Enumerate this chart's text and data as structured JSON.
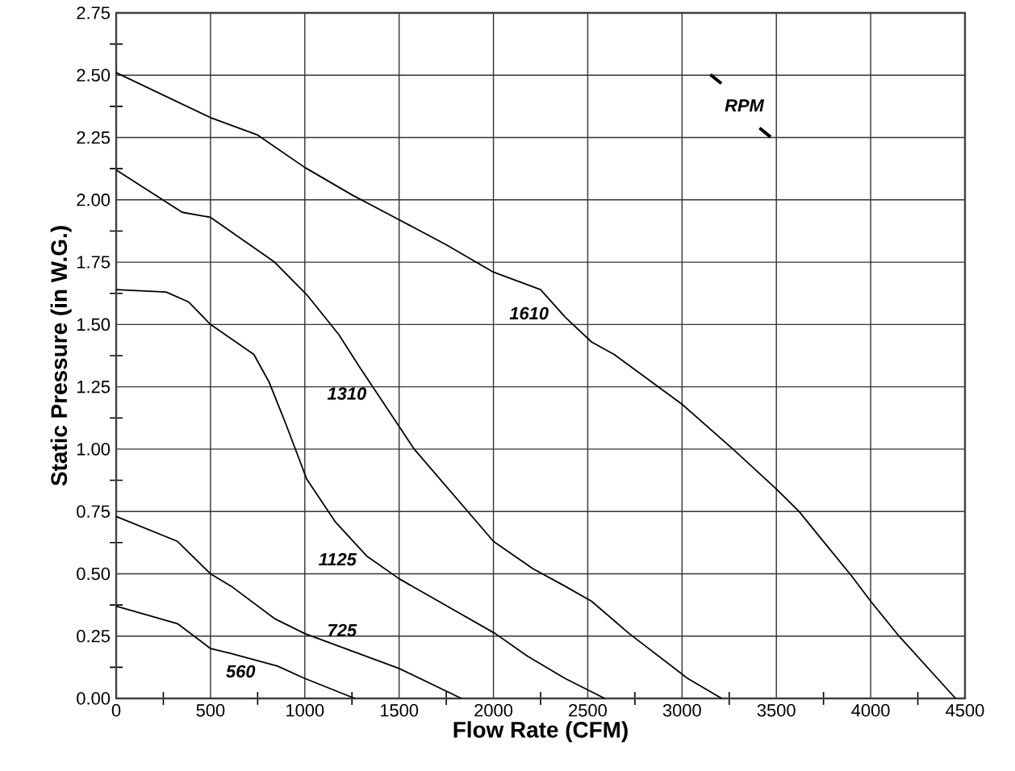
{
  "chart_data": {
    "type": "line",
    "xlabel": "Flow Rate (CFM)",
    "ylabel": "Static Pressure (in W.G.)",
    "xlim": [
      0,
      4500
    ],
    "ylim": [
      0,
      2.75
    ],
    "xticks": [
      0,
      {
        "value": 250,
        "label": null
      },
      500,
      {
        "value": 750,
        "label": null
      },
      1000,
      {
        "value": 1250,
        "label": null
      },
      1500,
      {
        "value": 1750,
        "label": null
      },
      2000,
      {
        "value": 2250,
        "label": null
      },
      2500,
      {
        "value": 2750,
        "label": null
      },
      3000,
      {
        "value": 3250,
        "label": null
      },
      3500,
      {
        "value": 3750,
        "label": null
      },
      4000,
      {
        "value": 4250,
        "label": null
      },
      4500
    ],
    "yticks": [
      {
        "value": 0,
        "label": "0.00"
      },
      {
        "value": 0.125,
        "label": null
      },
      {
        "value": 0.25,
        "label": "0.25"
      },
      {
        "value": 0.375,
        "label": null
      },
      {
        "value": 0.5,
        "label": "0.50"
      },
      {
        "value": 0.625,
        "label": null
      },
      {
        "value": 0.75,
        "label": "0.75"
      },
      {
        "value": 0.875,
        "label": null
      },
      {
        "value": 1,
        "label": "1.00"
      },
      {
        "value": 1.125,
        "label": null
      },
      {
        "value": 1.25,
        "label": "1.25"
      },
      {
        "value": 1.375,
        "label": null
      },
      {
        "value": 1.5,
        "label": "1.50"
      },
      {
        "value": 1.625,
        "label": null
      },
      {
        "value": 1.75,
        "label": "1.75"
      },
      {
        "value": 1.875,
        "label": null
      },
      {
        "value": 2,
        "label": "2.00"
      },
      {
        "value": 2.125,
        "label": null
      },
      {
        "value": 2.25,
        "label": "2.25"
      },
      {
        "value": 2.375,
        "label": null
      },
      {
        "value": 2.5,
        "label": "2.50"
      },
      {
        "value": 2.625,
        "label": null
      },
      {
        "value": 2.75,
        "label": "2.75"
      }
    ],
    "grid": true,
    "marker": "none",
    "line_style": "solid",
    "annotations": [
      "RPM"
    ],
    "series": [
      {
        "name": "1610",
        "color": "#000000",
        "x": [
          0,
          250,
          500,
          750,
          1000,
          1250,
          1500,
          1750,
          2000,
          2250,
          2380,
          2520,
          2640,
          3000,
          3270,
          3500,
          3620,
          3900,
          4000,
          4150,
          4450
        ],
        "values": [
          2.51,
          2.42,
          2.33,
          2.26,
          2.13,
          2.02,
          1.92,
          1.82,
          1.71,
          1.64,
          1.53,
          1.43,
          1.38,
          1.18,
          1.0,
          0.84,
          0.75,
          0.49,
          0.39,
          0.25,
          0
        ]
      },
      {
        "name": "1310",
        "color": "#000000",
        "x": [
          0,
          350,
          500,
          840,
          1010,
          1180,
          1290,
          1580,
          2000,
          2210,
          2380,
          2520,
          2720,
          3030,
          3210
        ],
        "values": [
          2.12,
          1.95,
          1.93,
          1.75,
          1.62,
          1.46,
          1.33,
          1.0,
          0.63,
          0.52,
          0.45,
          0.39,
          0.26,
          0.08,
          0
        ]
      },
      {
        "name": "1125",
        "color": "#000000",
        "x": [
          0,
          265,
          385,
          500,
          730,
          810,
          900,
          1010,
          1160,
          1330,
          1500,
          2010,
          2180,
          2380,
          2590
        ],
        "values": [
          1.64,
          1.63,
          1.59,
          1.5,
          1.38,
          1.27,
          1.1,
          0.88,
          0.71,
          0.57,
          0.48,
          0.26,
          0.17,
          0.08,
          0
        ]
      },
      {
        "name": "725",
        "color": "#000000",
        "x": [
          0,
          325,
          500,
          610,
          840,
          1000,
          1500,
          1830
        ],
        "values": [
          0.73,
          0.63,
          0.5,
          0.45,
          0.32,
          0.26,
          0.12,
          0
        ]
      },
      {
        "name": "560",
        "color": "#000000",
        "x": [
          0,
          325,
          500,
          610,
          855,
          1000,
          1265
        ],
        "values": [
          0.37,
          0.3,
          0.2,
          0.18,
          0.13,
          0.08,
          0
        ]
      }
    ]
  }
}
